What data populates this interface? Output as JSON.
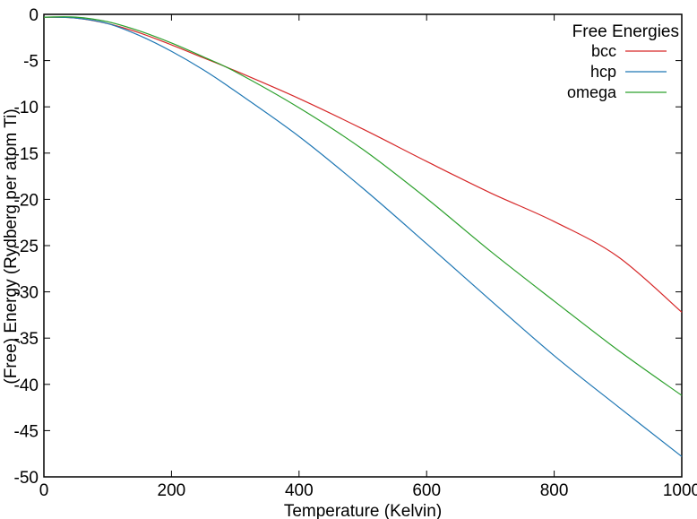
{
  "chart_data": {
    "type": "line",
    "xlabel": "Temperature (Kelvin)",
    "ylabel": "(Free) Energy (Rydberg per atom Ti)",
    "xlim": [
      0,
      1000
    ],
    "ylim": [
      -50,
      0
    ],
    "x_ticks": [
      0,
      200,
      400,
      600,
      800,
      1000
    ],
    "y_ticks": [
      0,
      -5,
      -10,
      -15,
      -20,
      -25,
      -30,
      -35,
      -40,
      -45,
      -50
    ],
    "grid": false,
    "legend": {
      "title": "Free Energies",
      "position": "top-right"
    },
    "series": [
      {
        "name": "bcc",
        "color": "#d62728",
        "x": [
          0,
          50,
          100,
          150,
          200,
          250,
          300,
          400,
          500,
          600,
          700,
          800,
          900,
          1000
        ],
        "y": [
          -0.3,
          -0.4,
          -1.0,
          -2.0,
          -3.3,
          -4.7,
          -6.1,
          -9.1,
          -12.4,
          -15.9,
          -19.3,
          -22.4,
          -26.2,
          -32.2
        ]
      },
      {
        "name": "hcp",
        "color": "#1f77b4",
        "x": [
          0,
          50,
          100,
          150,
          200,
          250,
          300,
          400,
          500,
          600,
          700,
          800,
          900,
          1000
        ],
        "y": [
          -0.3,
          -0.4,
          -1.0,
          -2.3,
          -4.0,
          -6.0,
          -8.3,
          -13.2,
          -18.8,
          -24.8,
          -30.9,
          -36.9,
          -42.4,
          -47.8
        ]
      },
      {
        "name": "omega",
        "color": "#2ca02c",
        "x": [
          0,
          50,
          100,
          150,
          200,
          250,
          300,
          400,
          500,
          600,
          700,
          800,
          900,
          1000
        ],
        "y": [
          -0.3,
          -0.3,
          -0.8,
          -1.8,
          -3.1,
          -4.6,
          -6.2,
          -10.1,
          -14.6,
          -19.9,
          -25.6,
          -31.0,
          -36.3,
          -41.2
        ]
      }
    ]
  }
}
